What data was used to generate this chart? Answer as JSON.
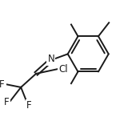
{
  "background_color": "#ffffff",
  "line_color": "#1a1a1a",
  "line_width": 1.4,
  "figsize": [
    1.6,
    1.41
  ],
  "dpi": 100,
  "xlim": [
    0,
    160
  ],
  "ylim": [
    0,
    141
  ]
}
